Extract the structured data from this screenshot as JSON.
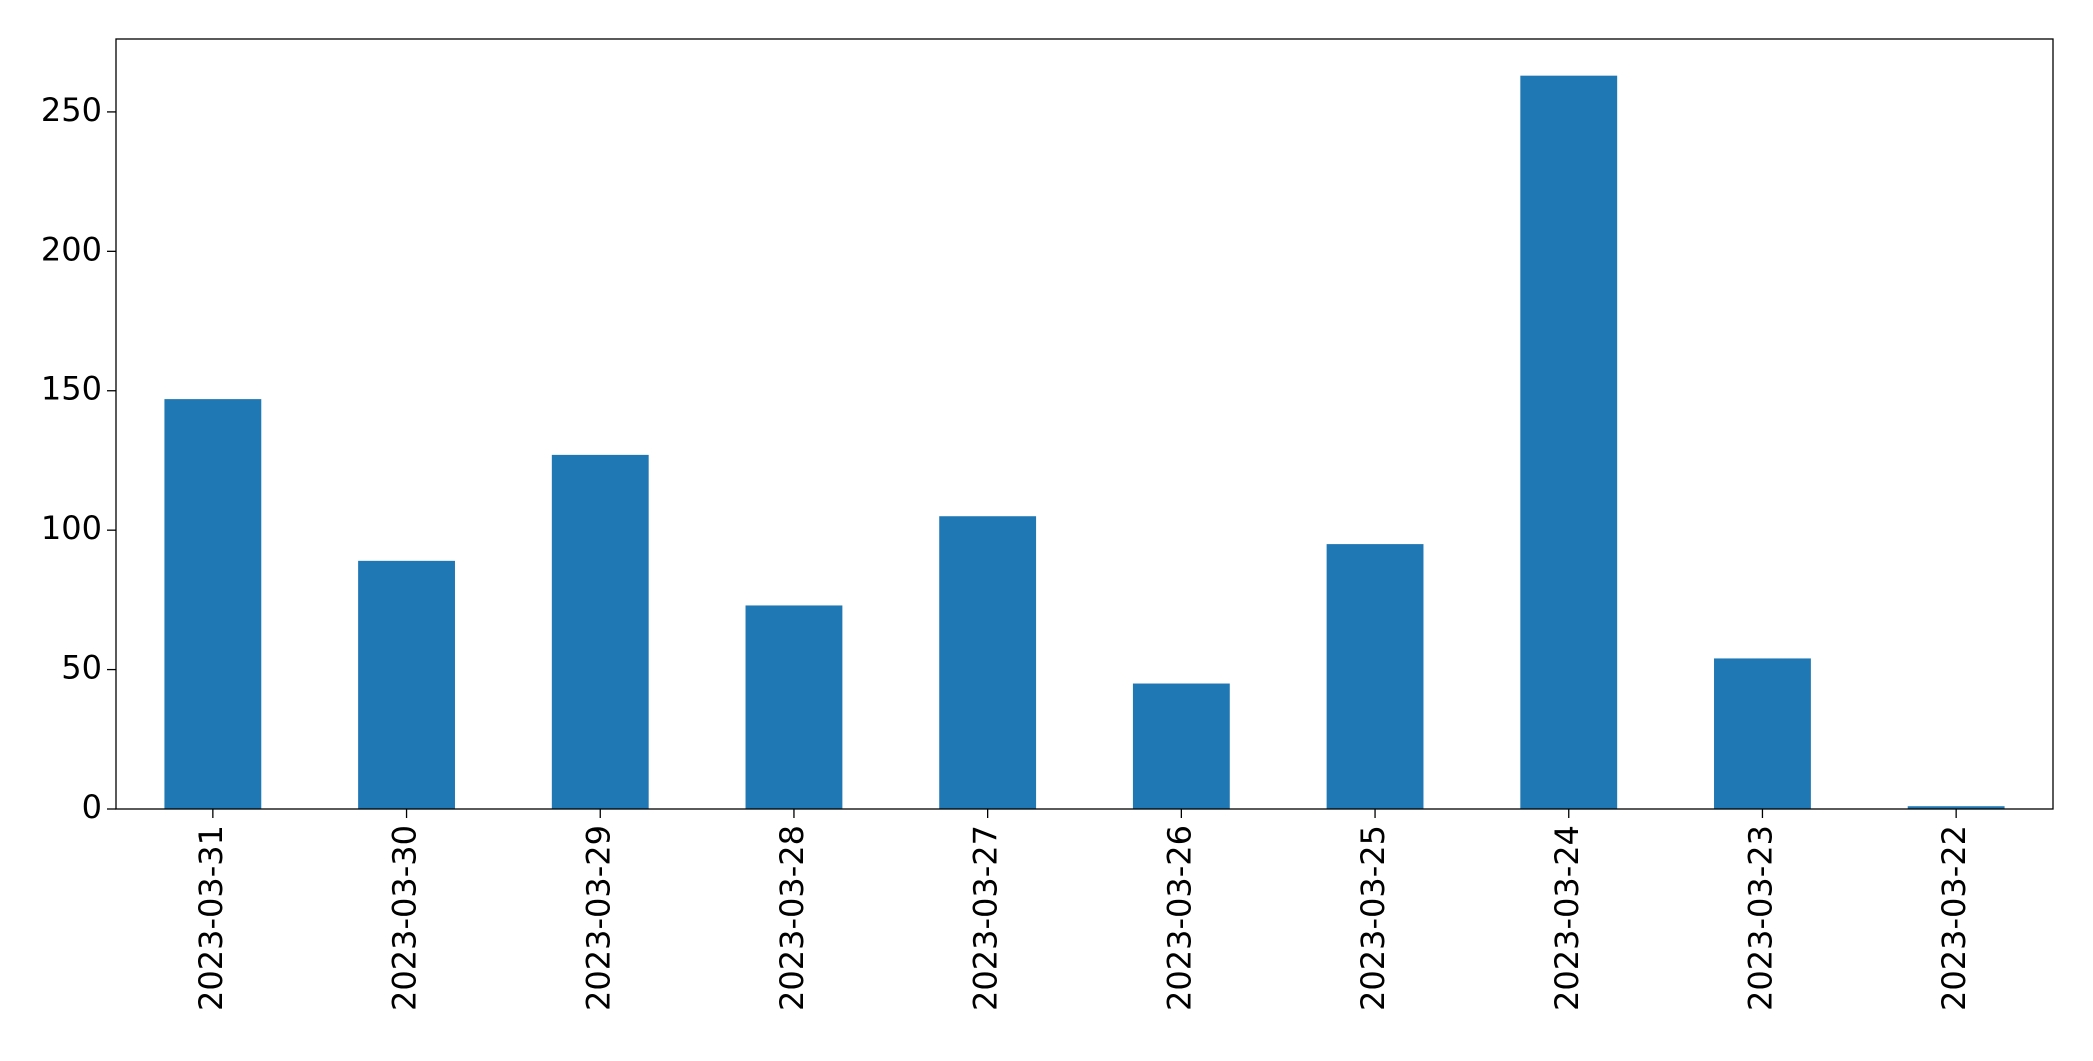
{
  "chart_data": {
    "type": "bar",
    "categories": [
      "2023-03-31",
      "2023-03-30",
      "2023-03-29",
      "2023-03-28",
      "2023-03-27",
      "2023-03-26",
      "2023-03-25",
      "2023-03-24",
      "2023-03-23",
      "2023-03-22"
    ],
    "values": [
      147,
      89,
      127,
      73,
      105,
      45,
      95,
      263,
      54,
      1
    ],
    "color": "#1f77b4",
    "ylim": [
      0,
      276.15
    ],
    "yticks": [
      0,
      50,
      100,
      150,
      200,
      250
    ],
    "grid": false
  }
}
